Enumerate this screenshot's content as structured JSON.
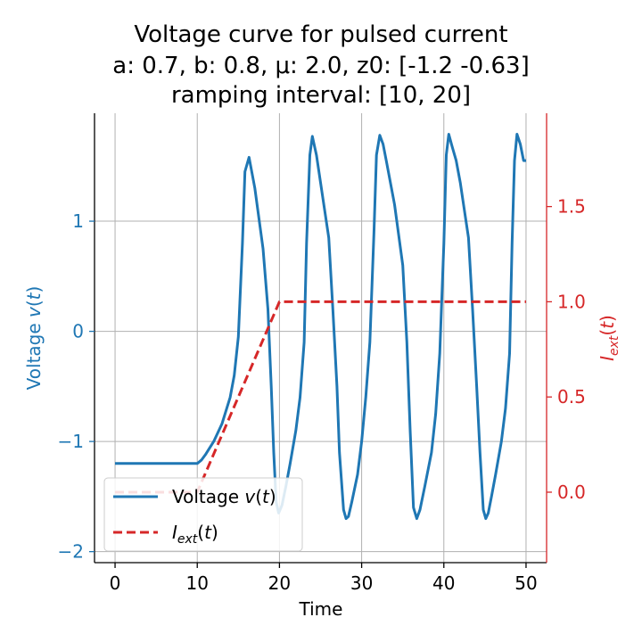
{
  "chart_data": {
    "type": "line",
    "title_lines": [
      "Voltage curve for pulsed current",
      "a: 0.7, b: 0.8, μ: 2.0, z0: [-1.2  -0.63]",
      "ramping interval: [10, 20]"
    ],
    "xlabel": "Time",
    "ylabel_left": "Voltage v(t)",
    "ylabel_right": "I_ext(t)",
    "xlim": [
      -2.5,
      52.5
    ],
    "ylim_left": [
      -2.1,
      1.98
    ],
    "ylim_right": [
      -0.37,
      1.99
    ],
    "x_ticks": [
      0,
      10,
      20,
      30,
      40,
      50
    ],
    "x_tick_labels": [
      "0",
      "10",
      "20",
      "30",
      "40",
      "50"
    ],
    "y_left_ticks": [
      -2,
      -1,
      0,
      1
    ],
    "y_left_tick_labels": [
      "−2",
      "−1",
      "0",
      "1"
    ],
    "y_right_ticks": [
      0.0,
      0.5,
      1.0,
      1.5
    ],
    "y_right_tick_labels": [
      "0.0",
      "0.5",
      "1.0",
      "1.5"
    ],
    "grid": true,
    "legend_position": "lower-left",
    "colors": {
      "voltage": "#1f77b4",
      "current": "#d62728",
      "grid": "#b0b0b0"
    },
    "series": [
      {
        "name": "Voltage v(t)",
        "axis": "left",
        "style": "solid",
        "x": [
          0,
          10,
          10.5,
          11,
          12,
          13,
          14,
          14.5,
          15,
          15.5,
          15.8,
          16.3,
          17,
          18,
          18.6,
          19,
          19.3,
          19.6,
          19.9,
          20.3,
          20.8,
          21.3,
          22,
          22.5,
          23,
          23.3,
          23.7,
          24,
          24.5,
          25,
          26,
          26.5,
          27,
          27.3,
          27.8,
          28.1,
          28.4,
          28.8,
          29.5,
          30,
          30.5,
          31,
          31.5,
          31.8,
          32.2,
          32.6,
          33,
          34,
          35,
          35.5,
          35.9,
          36.3,
          36.7,
          37.1,
          37.7,
          38.5,
          39,
          39.5,
          40,
          40.3,
          40.6,
          41,
          41.5,
          42,
          43,
          43.5,
          44,
          44.4,
          44.8,
          45.1,
          45.4,
          45.8,
          46.3,
          47,
          47.5,
          48,
          48.3,
          48.6,
          48.9,
          49.3,
          49.7,
          50
        ],
        "y": [
          -1.2,
          -1.2,
          -1.17,
          -1.12,
          -1.0,
          -0.84,
          -0.6,
          -0.4,
          -0.05,
          0.8,
          1.45,
          1.58,
          1.3,
          0.75,
          0.2,
          -0.5,
          -1.1,
          -1.55,
          -1.65,
          -1.58,
          -1.4,
          -1.2,
          -0.9,
          -0.6,
          -0.1,
          0.8,
          1.6,
          1.77,
          1.6,
          1.35,
          0.85,
          0.2,
          -0.5,
          -1.1,
          -1.62,
          -1.7,
          -1.68,
          -1.55,
          -1.3,
          -1.0,
          -0.6,
          -0.1,
          0.9,
          1.6,
          1.78,
          1.7,
          1.55,
          1.15,
          0.6,
          -0.1,
          -0.9,
          -1.6,
          -1.7,
          -1.62,
          -1.4,
          -1.1,
          -0.75,
          -0.2,
          0.8,
          1.6,
          1.79,
          1.68,
          1.55,
          1.35,
          0.85,
          0.2,
          -0.5,
          -1.1,
          -1.62,
          -1.7,
          -1.65,
          -1.5,
          -1.3,
          -1.0,
          -0.7,
          -0.2,
          0.8,
          1.55,
          1.79,
          1.7,
          1.55,
          1.55
        ]
      },
      {
        "name": "I_ext(t)",
        "axis": "right",
        "style": "dashed",
        "x": [
          0,
          10,
          20,
          50
        ],
        "y": [
          0.0,
          0.0,
          1.0,
          1.0
        ]
      }
    ]
  }
}
